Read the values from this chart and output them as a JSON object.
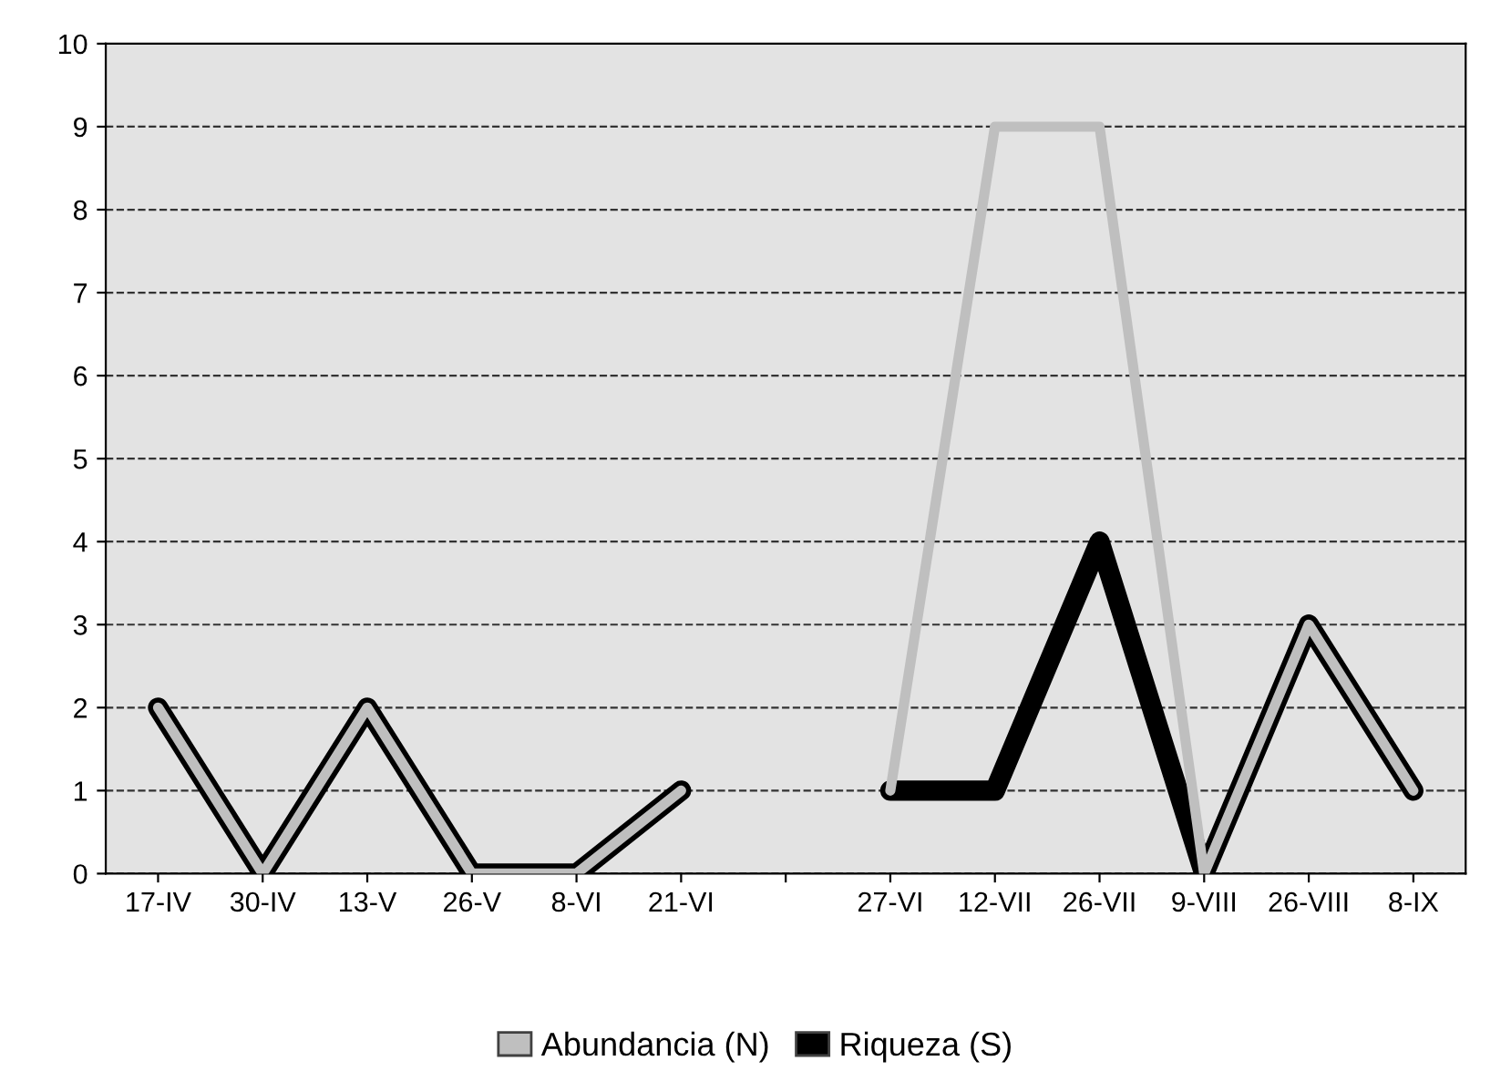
{
  "chart_data": {
    "type": "line",
    "categories": [
      "17-IV",
      "30-IV",
      "13-V",
      "26-V",
      "8-VI",
      "21-VI",
      null,
      "27-VI",
      "12-VII",
      "26-VII",
      "9-VIII",
      "26-VIII",
      "8-IX"
    ],
    "series": [
      {
        "name": "Abundancia (N)",
        "color": "#bfbfbf",
        "values": [
          2,
          0,
          2,
          0,
          0,
          1,
          null,
          1,
          9,
          9,
          0,
          3,
          1
        ]
      },
      {
        "name": "Riqueza (S)",
        "color": "#000000",
        "values": [
          2,
          0,
          2,
          0,
          0,
          1,
          null,
          1,
          1,
          4,
          0,
          3,
          1
        ]
      }
    ],
    "ylim": [
      0,
      10
    ],
    "yticks": [
      0,
      1,
      2,
      3,
      4,
      5,
      6,
      7,
      8,
      9,
      10
    ],
    "grid": "y",
    "legend": "bottom",
    "marker": "none",
    "line_style": "solid"
  }
}
